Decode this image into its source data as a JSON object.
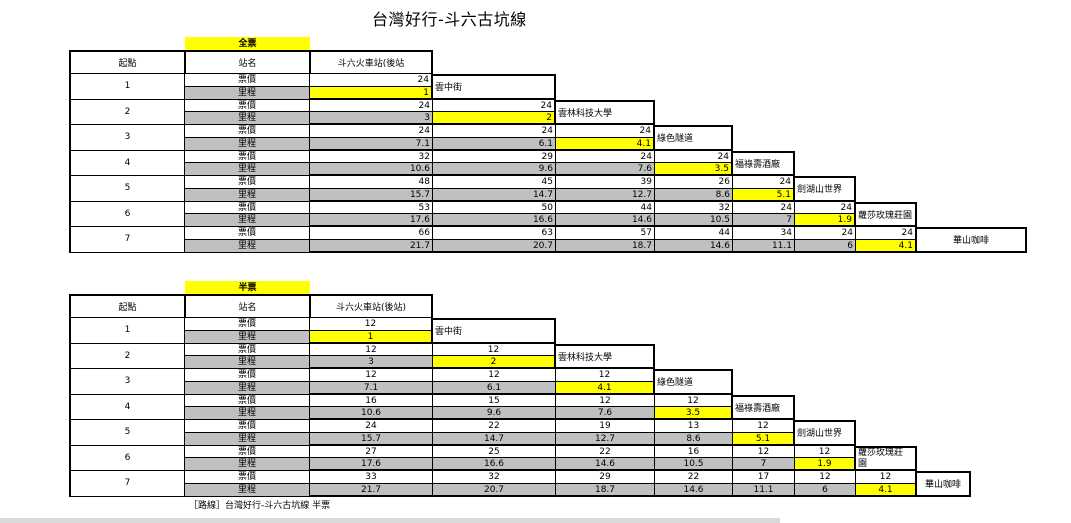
{
  "title": "台灣好行-斗六古坑線",
  "footer": "［路線］台灣好行-斗六古坑線 半票",
  "row_label_price": "票價",
  "row_label_distance": "里程",
  "col_start": "起點",
  "col_station": "站名",
  "stations": [
    "斗六火車站(後站",
    "雲中街",
    "雲林科技大學",
    "綠色隧道",
    "福祿壽酒廠",
    "劍湖山世界",
    "蘿莎玫瑰莊園",
    "華山咖啡"
  ],
  "tables": [
    {
      "label": "全票",
      "first_station": "斗六火車站(後站",
      "rows": [
        {
          "no": "1",
          "prices": [
            "24"
          ],
          "dists": [
            "1"
          ]
        },
        {
          "no": "2",
          "prices": [
            "24",
            "24"
          ],
          "dists": [
            "3",
            "2"
          ]
        },
        {
          "no": "3",
          "prices": [
            "24",
            "24",
            "24"
          ],
          "dists": [
            "7.1",
            "6.1",
            "4.1"
          ]
        },
        {
          "no": "4",
          "prices": [
            "32",
            "29",
            "24",
            "24"
          ],
          "dists": [
            "10.6",
            "9.6",
            "7.6",
            "3.5"
          ]
        },
        {
          "no": "5",
          "prices": [
            "48",
            "45",
            "39",
            "26",
            "24"
          ],
          "dists": [
            "15.7",
            "14.7",
            "12.7",
            "8.6",
            "5.1"
          ]
        },
        {
          "no": "6",
          "prices": [
            "53",
            "50",
            "44",
            "32",
            "24",
            "24"
          ],
          "dists": [
            "17.6",
            "16.6",
            "14.6",
            "10.5",
            "7",
            "1.9"
          ]
        },
        {
          "no": "7",
          "prices": [
            "66",
            "63",
            "57",
            "44",
            "34",
            "24",
            "24"
          ],
          "dists": [
            "21.7",
            "20.7",
            "18.7",
            "14.6",
            "11.1",
            "6",
            "4.1"
          ]
        }
      ],
      "diag_labels": [
        "雲中街",
        "雲林科技大學",
        "綠色隧道",
        "福祿壽酒廠",
        "劍湖山世界",
        "蘿莎玫瑰莊園",
        "華山咖啡"
      ]
    },
    {
      "label": "半票",
      "first_station": "斗六火車站(後站)",
      "rows": [
        {
          "no": "1",
          "prices": [
            "12"
          ],
          "dists": [
            "1"
          ]
        },
        {
          "no": "2",
          "prices": [
            "12",
            "12"
          ],
          "dists": [
            "3",
            "2"
          ]
        },
        {
          "no": "3",
          "prices": [
            "12",
            "12",
            "12"
          ],
          "dists": [
            "7.1",
            "6.1",
            "4.1"
          ]
        },
        {
          "no": "4",
          "prices": [
            "16",
            "15",
            "12",
            "12"
          ],
          "dists": [
            "10.6",
            "9.6",
            "7.6",
            "3.5"
          ]
        },
        {
          "no": "5",
          "prices": [
            "24",
            "22",
            "19",
            "13",
            "12"
          ],
          "dists": [
            "15.7",
            "14.7",
            "12.7",
            "8.6",
            "5.1"
          ]
        },
        {
          "no": "6",
          "prices": [
            "27",
            "25",
            "22",
            "16",
            "12",
            "12"
          ],
          "dists": [
            "17.6",
            "16.6",
            "14.6",
            "10.5",
            "7",
            "1.9"
          ]
        },
        {
          "no": "7",
          "prices": [
            "33",
            "32",
            "29",
            "22",
            "17",
            "12",
            "12"
          ],
          "dists": [
            "21.7",
            "20.7",
            "18.7",
            "14.6",
            "11.1",
            "6",
            "4.1"
          ]
        }
      ],
      "diag_labels": [
        "雲中街",
        "雲林科技大學",
        "綠色隧道",
        "福祿壽酒廠",
        "劍湖山世界",
        "蘿莎玫瑰莊\n園",
        "華山咖啡"
      ]
    }
  ],
  "colors": {
    "highlight": "#ffff00",
    "distance_row": "#c0c0c0"
  }
}
